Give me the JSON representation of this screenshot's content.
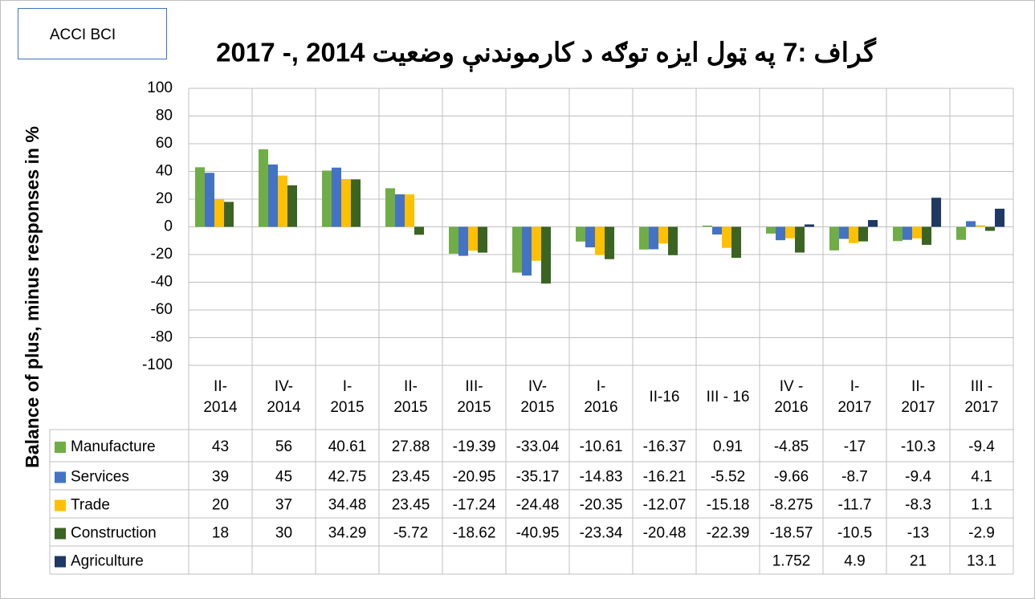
{
  "chart_data": {
    "type": "bar",
    "badge": "ACCI BCI",
    "title": "گراف :7 په ټول ايزه توګه د کارموندنې وضعيت 2014 ,- 2017",
    "y_label": "Balance of plus, minus responses in %",
    "categories": [
      "II-\n2014",
      "IV-\n2014",
      "I-\n2015",
      "II-\n2015",
      "III-\n2015",
      "IV-\n2015",
      "I-\n2016",
      "II-16",
      "III - 16",
      "IV -\n2016",
      "I-\n2017",
      "II-\n2017",
      "III -\n2017"
    ],
    "series": [
      {
        "name": "Manufacture",
        "color": "#70ad47",
        "values": [
          43,
          56,
          40.61,
          27.88,
          -19.39,
          -33.04,
          -10.61,
          -16.37,
          0.91,
          -4.85,
          -17,
          -10.3,
          -9.4
        ]
      },
      {
        "name": "Services",
        "color": "#4472c4",
        "values": [
          39,
          45,
          42.75,
          23.45,
          -20.95,
          -35.17,
          -14.83,
          -16.21,
          -5.52,
          -9.66,
          -8.7,
          -9.4,
          4.1
        ]
      },
      {
        "name": "Trade",
        "color": "#ffc000",
        "values": [
          20,
          37,
          34.48,
          23.45,
          -17.24,
          -24.48,
          -20.35,
          -12.07,
          -15.18,
          -8.275,
          -11.7,
          -8.3,
          1.1
        ]
      },
      {
        "name": "Construction",
        "color": "#3b6324",
        "values": [
          18,
          30,
          34.29,
          -5.72,
          -18.62,
          -40.95,
          -23.34,
          -20.48,
          -22.39,
          -18.57,
          -10.5,
          -13,
          -2.9
        ]
      },
      {
        "name": "Agriculture",
        "color": "#1f3864",
        "values": [
          null,
          null,
          null,
          null,
          null,
          null,
          null,
          null,
          null,
          1.752,
          4.9,
          21,
          13.1
        ]
      }
    ],
    "ylim": [
      -100,
      100
    ],
    "yticks": [
      -100,
      -80,
      -60,
      -40,
      -20,
      0,
      20,
      40,
      60,
      80,
      100
    ],
    "grid": true,
    "data_table": true
  }
}
